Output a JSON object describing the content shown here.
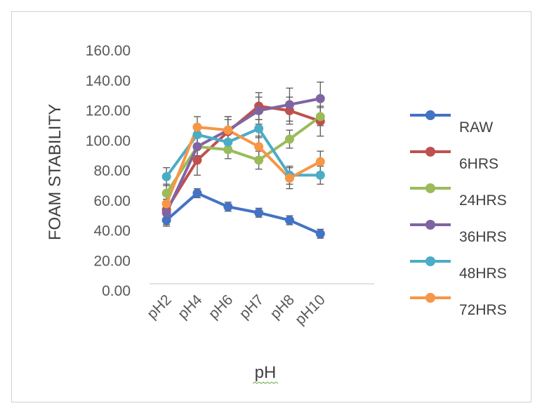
{
  "chart_data": {
    "type": "line",
    "title": "",
    "xlabel": "pH",
    "ylabel": "FOAM STABILITY",
    "categories": [
      "pH2",
      "pH4",
      "pH6",
      "pH7",
      "pH8",
      "pH10"
    ],
    "ylim": [
      0,
      160
    ],
    "yticks": [
      "0.00",
      "20.00",
      "40.00",
      "60.00",
      "80.00",
      "100.00",
      "120.00",
      "140.00",
      "160.00"
    ],
    "grid": false,
    "legend_position": "right",
    "error_bars": true,
    "series": [
      {
        "name": "RAW",
        "color": "#4472C4",
        "values": [
          47,
          65,
          56,
          52,
          47,
          38
        ],
        "errors": [
          3,
          3,
          3,
          3,
          3,
          3
        ]
      },
      {
        "name": "6HRS",
        "color": "#C0504D",
        "values": [
          54,
          87,
          106,
          123,
          120,
          113
        ],
        "errors": [
          7,
          10,
          10,
          9,
          9,
          10
        ]
      },
      {
        "name": "24HRS",
        "color": "#9BBB59",
        "values": [
          65,
          96,
          94,
          87,
          101,
          116
        ],
        "errors": [
          6,
          6,
          6,
          6,
          6,
          6
        ]
      },
      {
        "name": "36HRS",
        "color": "#8064A2",
        "values": [
          52,
          96,
          107,
          120,
          124,
          128
        ],
        "errors": [
          9,
          9,
          9,
          9,
          11,
          11
        ]
      },
      {
        "name": "48HRS",
        "color": "#4BACC6",
        "values": [
          76,
          104,
          99,
          108,
          77,
          77
        ],
        "errors": [
          6,
          6,
          6,
          6,
          6,
          6
        ]
      },
      {
        "name": "72HRS",
        "color": "#F79646",
        "values": [
          58,
          109,
          107,
          96,
          75,
          86
        ],
        "errors": [
          7,
          7,
          7,
          7,
          7,
          7
        ]
      }
    ]
  }
}
